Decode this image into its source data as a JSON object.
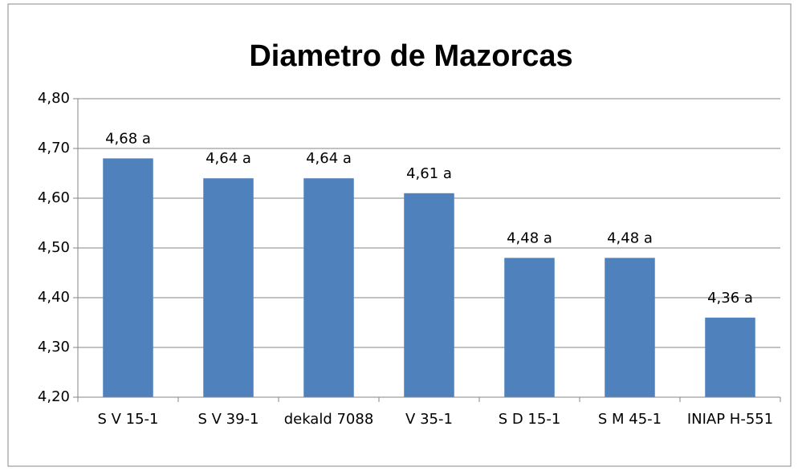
{
  "chart_data": {
    "type": "bar",
    "title": "Diametro de Mazorcas",
    "categories": [
      "S V 15-1",
      "S V 39-1",
      "dekald 7088",
      "V 35-1",
      "S D 15-1",
      "S M 45-1",
      "INIAP H-551"
    ],
    "values": [
      4.68,
      4.64,
      4.64,
      4.61,
      4.48,
      4.48,
      4.36
    ],
    "value_labels": [
      "4,68 a",
      "4,64 a",
      "4,64 a",
      "4,61 a",
      "4,48 a",
      "4,48 a",
      "4,36 a"
    ],
    "color": "#4f81bd",
    "ylim": [
      4.2,
      4.8
    ],
    "yticks": [
      {
        "value": 4.2,
        "label": "4,20"
      },
      {
        "value": 4.3,
        "label": "4,30"
      },
      {
        "value": 4.4,
        "label": "4,40"
      },
      {
        "value": 4.5,
        "label": "4,50"
      },
      {
        "value": 4.6,
        "label": "4,60"
      },
      {
        "value": 4.7,
        "label": "4,70"
      },
      {
        "value": 4.8,
        "label": "4,80"
      }
    ],
    "grid": true
  }
}
